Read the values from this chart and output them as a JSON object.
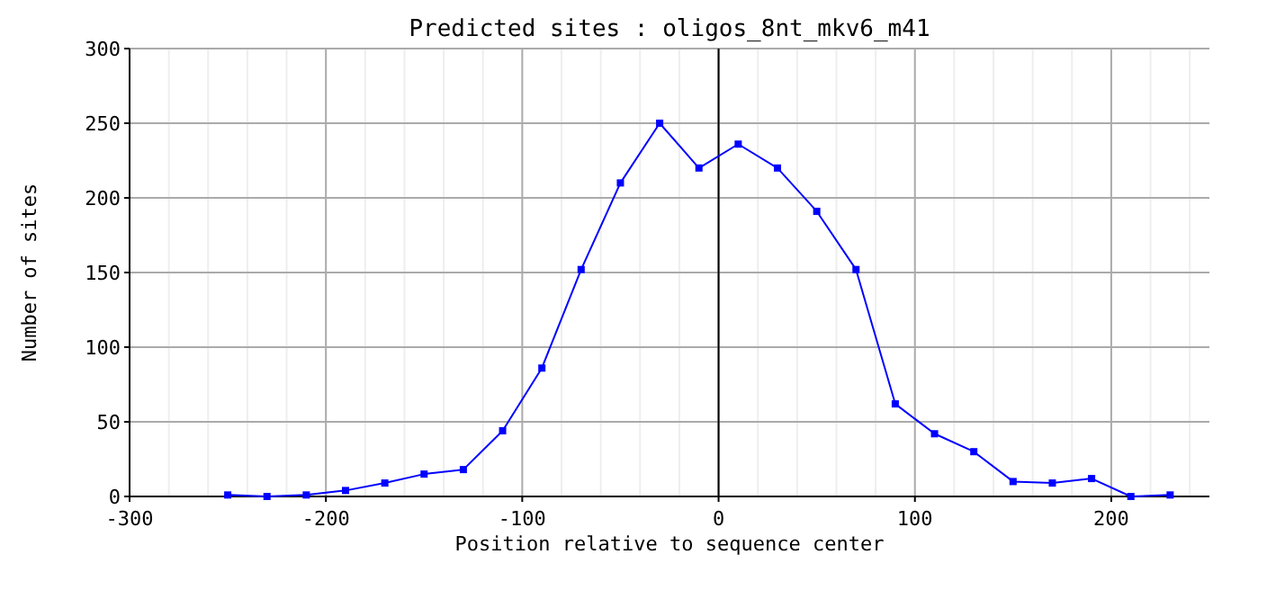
{
  "chart_data": {
    "type": "line",
    "title": "Predicted sites : oligos_8nt_mkv6_m41",
    "xlabel": "Position relative to sequence center",
    "ylabel": "Number of sites",
    "x": [
      -250,
      -230,
      -210,
      -190,
      -170,
      -150,
      -130,
      -110,
      -90,
      -70,
      -50,
      -30,
      -10,
      10,
      30,
      50,
      70,
      90,
      110,
      130,
      150,
      170,
      190,
      210,
      230
    ],
    "series": [
      {
        "color": "#0000ff",
        "values": [
          1,
          0,
          1,
          4,
          9,
          15,
          18,
          44,
          86,
          152,
          210,
          250,
          220,
          236,
          220,
          191,
          152,
          62,
          42,
          30,
          10,
          9,
          12,
          0,
          1
        ]
      }
    ],
    "xlim": [
      -300,
      250
    ],
    "xticks": [
      -300,
      -200,
      -100,
      0,
      100,
      200
    ],
    "ylim": [
      0,
      300
    ],
    "yticks": [
      0,
      50,
      100,
      150,
      200,
      250,
      300
    ],
    "grid": true,
    "marker": "square",
    "line_style": "solid",
    "ref_lines": [
      {
        "axis": "x",
        "value": 0,
        "color": "#000000"
      }
    ]
  }
}
